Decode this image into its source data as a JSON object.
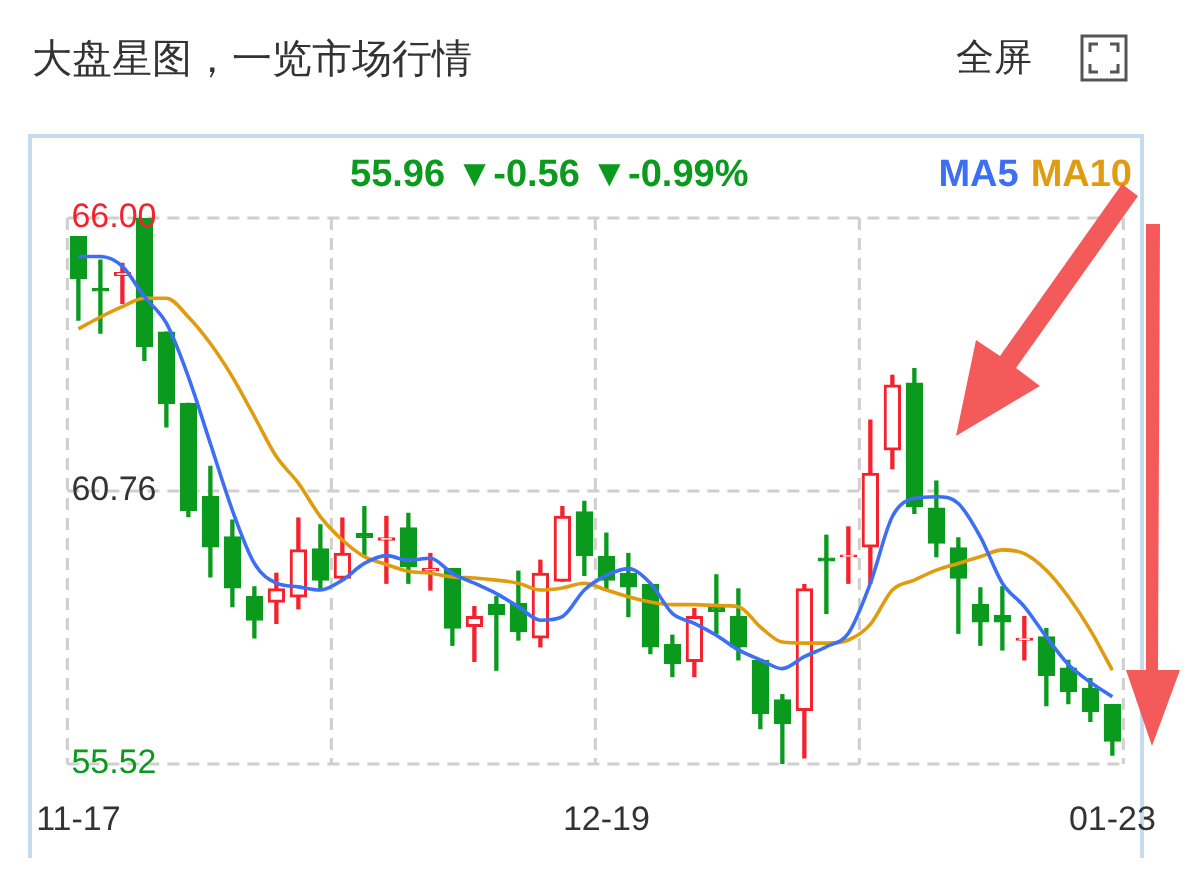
{
  "chart_data": {
    "type": "candlestick",
    "title": "大盘星图，一览市场行情",
    "annotations": [
      "全屏",
      "55.96 ▼-0.56 ▼-0.99%"
    ],
    "categories": [
      "11-17",
      null,
      null,
      null,
      null,
      null,
      null,
      null,
      null,
      null,
      null,
      null,
      null,
      null,
      null,
      null,
      null,
      null,
      null,
      null,
      null,
      null,
      null,
      null,
      "12-19",
      null,
      null,
      null,
      null,
      null,
      null,
      null,
      null,
      null,
      null,
      null,
      null,
      null,
      null,
      null,
      null,
      null,
      null,
      null,
      null,
      null,
      null,
      "01-23"
    ],
    "ohlc": [
      [
        65.64,
        65.64,
        64.04,
        64.84
      ],
      [
        64.65,
        65.19,
        63.79,
        64.6
      ],
      [
        64.9,
        65.13,
        64.36,
        64.95
      ],
      [
        66.0,
        66.0,
        63.27,
        63.53
      ],
      [
        63.81,
        63.81,
        61.99,
        62.44
      ],
      [
        62.44,
        62.44,
        60.27,
        60.39
      ],
      [
        60.65,
        61.23,
        59.11,
        59.69
      ],
      [
        59.88,
        60.2,
        58.54,
        58.9
      ],
      [
        58.73,
        58.92,
        57.94,
        58.28
      ],
      [
        58.63,
        59.18,
        58.22,
        58.88
      ],
      [
        58.73,
        60.24,
        58.5,
        59.63
      ],
      [
        59.65,
        60.11,
        58.86,
        59.05
      ],
      [
        59.09,
        60.24,
        59.05,
        59.56
      ],
      [
        59.94,
        60.46,
        59.5,
        59.87
      ],
      [
        59.82,
        60.27,
        58.99,
        59.86
      ],
      [
        60.05,
        60.33,
        58.99,
        59.31
      ],
      [
        59.23,
        59.56,
        58.86,
        59.27
      ],
      [
        59.27,
        59.27,
        57.8,
        58.13
      ],
      [
        58.16,
        58.54,
        57.49,
        58.35
      ],
      [
        58.58,
        58.73,
        57.32,
        58.39
      ],
      [
        58.6,
        59.22,
        57.9,
        58.06
      ],
      [
        57.94,
        59.43,
        57.77,
        59.18
      ],
      [
        59.03,
        60.46,
        59.03,
        60.27
      ],
      [
        60.36,
        60.56,
        59.14,
        59.52
      ],
      [
        59.5,
        59.95,
        58.86,
        59.05
      ],
      [
        59.18,
        59.56,
        58.35,
        58.92
      ],
      [
        58.96,
        58.96,
        57.64,
        57.77
      ],
      [
        57.81,
        57.99,
        57.2,
        57.45
      ],
      [
        57.49,
        58.5,
        57.2,
        58.35
      ],
      [
        58.54,
        59.15,
        58.03,
        58.45
      ],
      [
        58.35,
        58.88,
        57.52,
        57.77
      ],
      [
        57.51,
        57.51,
        56.2,
        56.49
      ],
      [
        56.75,
        56.85,
        55.53,
        56.3
      ],
      [
        56.55,
        58.96,
        55.64,
        58.88
      ],
      [
        59.47,
        59.91,
        58.41,
        59.42
      ],
      [
        59.5,
        60.07,
        58.99,
        59.53
      ],
      [
        59.69,
        62.12,
        58.99,
        61.1
      ],
      [
        61.55,
        62.98,
        61.19,
        62.79
      ],
      [
        62.83,
        63.11,
        60.33,
        60.46
      ],
      [
        60.43,
        60.95,
        59.5,
        59.76
      ],
      [
        59.67,
        59.86,
        58.03,
        59.09
      ],
      [
        58.58,
        58.9,
        57.8,
        58.25
      ],
      [
        58.37,
        58.92,
        57.71,
        58.25
      ],
      [
        57.9,
        58.35,
        57.52,
        57.93
      ],
      [
        57.96,
        58.12,
        56.64,
        57.22
      ],
      [
        57.36,
        57.51,
        56.68,
        56.91
      ],
      [
        56.97,
        57.16,
        56.34,
        56.53
      ],
      [
        56.66,
        56.66,
        55.69,
        55.96
      ]
    ],
    "series": [
      {
        "name": "MA5",
        "type": "line",
        "color": "#3d6ff5",
        "values": [
          65.26,
          65.26,
          65.07,
          64.49,
          63.98,
          62.95,
          61.67,
          60.39,
          59.37,
          58.99,
          58.92,
          58.86,
          59.05,
          59.37,
          59.52,
          59.43,
          59.47,
          59.18,
          58.99,
          58.79,
          58.54,
          58.28,
          58.35,
          58.86,
          59.14,
          59.27,
          58.99,
          58.41,
          58.22,
          57.99,
          57.71,
          57.52,
          57.35,
          57.58,
          57.77,
          58.03,
          58.99,
          60.27,
          60.62,
          60.65,
          60.52,
          59.88,
          58.99,
          58.54,
          57.96,
          57.43,
          57.09,
          56.81
        ]
      },
      {
        "name": "MA10",
        "type": "line",
        "color": "#e19b0e",
        "values": [
          63.87,
          64.1,
          64.3,
          64.46,
          64.46,
          64.1,
          63.59,
          62.95,
          62.19,
          61.42,
          60.91,
          60.27,
          59.82,
          59.5,
          59.35,
          59.22,
          59.18,
          59.11,
          59.09,
          59.05,
          58.99,
          58.86,
          58.9,
          58.99,
          58.86,
          58.73,
          58.63,
          58.58,
          58.58,
          58.56,
          58.54,
          58.15,
          57.86,
          57.84,
          57.84,
          57.9,
          58.2,
          58.86,
          59.05,
          59.24,
          59.37,
          59.5,
          59.63,
          59.56,
          59.24,
          58.73,
          58.09,
          57.32
        ]
      }
    ],
    "ylim": [
      55.52,
      66.0
    ],
    "yticks": [
      {
        "value": 66.0,
        "label": "66.00"
      },
      {
        "value": 60.76,
        "label": "60.76"
      },
      {
        "value": 55.52,
        "label": "55.52"
      }
    ],
    "grid": true,
    "legend": "top right"
  }
}
